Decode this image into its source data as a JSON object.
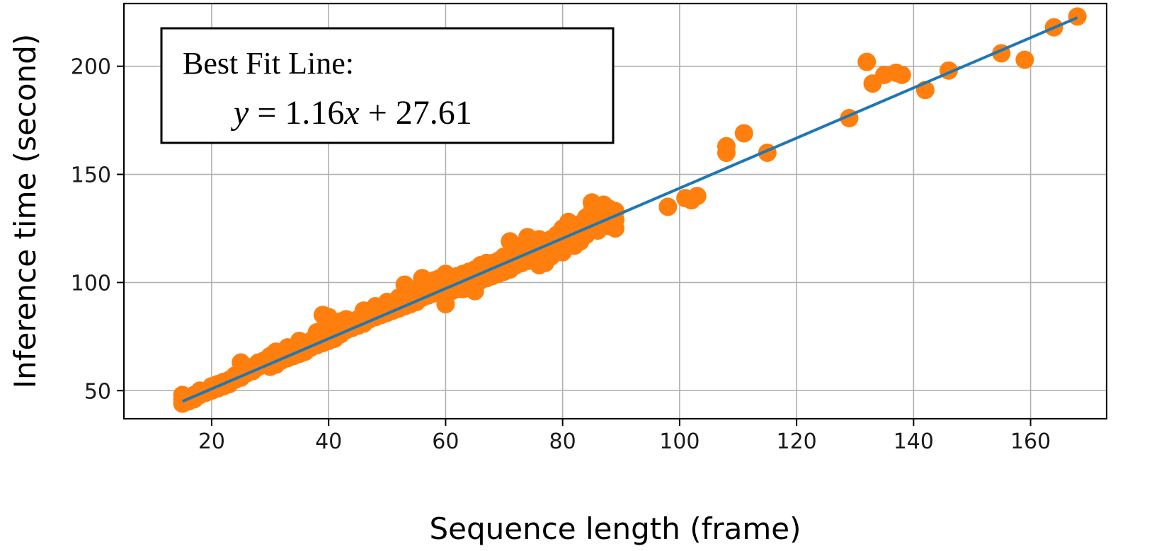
{
  "chart_data": {
    "type": "scatter",
    "xlabel": "Sequence length (frame)",
    "ylabel": "Inference time (second)",
    "xlim": [
      5,
      173
    ],
    "ylim": [
      37,
      229
    ],
    "xticks": [
      20,
      40,
      60,
      80,
      100,
      120,
      140,
      160
    ],
    "yticks": [
      50,
      100,
      150,
      200
    ],
    "grid": true,
    "colors": {
      "points": "#ff7f0e",
      "fit_line": "#1f77b4",
      "grid": "#b0b0b0"
    },
    "annotation": {
      "title": "Best Fit Line:",
      "eq_y": "y",
      "eq_mid": " = 1.16",
      "eq_x": "x",
      "eq_tail": " + 27.61"
    },
    "fit_line": {
      "slope": 1.16,
      "intercept": 27.61,
      "x_range": [
        15,
        168
      ]
    },
    "series": [
      {
        "points": [
          [
            15,
            44
          ],
          [
            15,
            46
          ],
          [
            15,
            48
          ],
          [
            16,
            45
          ],
          [
            16,
            47
          ],
          [
            17,
            46
          ],
          [
            17,
            48
          ],
          [
            18,
            48
          ],
          [
            18,
            50
          ],
          [
            19,
            49
          ],
          [
            20,
            50
          ],
          [
            20,
            52
          ],
          [
            21,
            51
          ],
          [
            21,
            53
          ],
          [
            22,
            52
          ],
          [
            22,
            54
          ],
          [
            23,
            53
          ],
          [
            23,
            55
          ],
          [
            24,
            55
          ],
          [
            24,
            57
          ],
          [
            25,
            56
          ],
          [
            25,
            58
          ],
          [
            25,
            63
          ],
          [
            26,
            58
          ],
          [
            26,
            60
          ],
          [
            27,
            59
          ],
          [
            27,
            61
          ],
          [
            28,
            61
          ],
          [
            28,
            63
          ],
          [
            29,
            62
          ],
          [
            29,
            64
          ],
          [
            30,
            61
          ],
          [
            30,
            63
          ],
          [
            30,
            66
          ],
          [
            31,
            62
          ],
          [
            31,
            65
          ],
          [
            31,
            68
          ],
          [
            32,
            64
          ],
          [
            32,
            67
          ],
          [
            33,
            65
          ],
          [
            33,
            68
          ],
          [
            33,
            70
          ],
          [
            34,
            66
          ],
          [
            34,
            69
          ],
          [
            35,
            67
          ],
          [
            35,
            70
          ],
          [
            35,
            73
          ],
          [
            36,
            68
          ],
          [
            36,
            71
          ],
          [
            37,
            70
          ],
          [
            37,
            73
          ],
          [
            38,
            71
          ],
          [
            38,
            74
          ],
          [
            38,
            77
          ],
          [
            39,
            72
          ],
          [
            39,
            75
          ],
          [
            39,
            78
          ],
          [
            39,
            85
          ],
          [
            40,
            73
          ],
          [
            40,
            76
          ],
          [
            40,
            79
          ],
          [
            40,
            84
          ],
          [
            41,
            74
          ],
          [
            41,
            77
          ],
          [
            41,
            80
          ],
          [
            42,
            76
          ],
          [
            42,
            79
          ],
          [
            42,
            82
          ],
          [
            43,
            78
          ],
          [
            43,
            80
          ],
          [
            43,
            83
          ],
          [
            44,
            79
          ],
          [
            44,
            82
          ],
          [
            45,
            80
          ],
          [
            45,
            83
          ],
          [
            46,
            81
          ],
          [
            46,
            84
          ],
          [
            46,
            87
          ],
          [
            47,
            83
          ],
          [
            47,
            86
          ],
          [
            48,
            84
          ],
          [
            48,
            87
          ],
          [
            48,
            89
          ],
          [
            49,
            85
          ],
          [
            49,
            88
          ],
          [
            50,
            86
          ],
          [
            50,
            89
          ],
          [
            50,
            91
          ],
          [
            51,
            87
          ],
          [
            51,
            90
          ],
          [
            52,
            88
          ],
          [
            52,
            91
          ],
          [
            52,
            93
          ],
          [
            53,
            89
          ],
          [
            53,
            92
          ],
          [
            53,
            95
          ],
          [
            53,
            99
          ],
          [
            54,
            90
          ],
          [
            54,
            93
          ],
          [
            54,
            96
          ],
          [
            55,
            91
          ],
          [
            55,
            94
          ],
          [
            55,
            97
          ],
          [
            56,
            93
          ],
          [
            56,
            96
          ],
          [
            56,
            99
          ],
          [
            56,
            102
          ],
          [
            57,
            94
          ],
          [
            57,
            97
          ],
          [
            57,
            100
          ],
          [
            58,
            95
          ],
          [
            58,
            98
          ],
          [
            58,
            101
          ],
          [
            59,
            96
          ],
          [
            59,
            99
          ],
          [
            59,
            102
          ],
          [
            60,
            90
          ],
          [
            60,
            94
          ],
          [
            60,
            97
          ],
          [
            60,
            100
          ],
          [
            60,
            104
          ],
          [
            61,
            96
          ],
          [
            61,
            99
          ],
          [
            61,
            102
          ],
          [
            62,
            97
          ],
          [
            62,
            100
          ],
          [
            62,
            103
          ],
          [
            63,
            97
          ],
          [
            63,
            101
          ],
          [
            63,
            104
          ],
          [
            64,
            99
          ],
          [
            64,
            102
          ],
          [
            64,
            105
          ],
          [
            65,
            96
          ],
          [
            65,
            100
          ],
          [
            65,
            103
          ],
          [
            65,
            106
          ],
          [
            66,
            101
          ],
          [
            66,
            104
          ],
          [
            66,
            108
          ],
          [
            67,
            102
          ],
          [
            67,
            105
          ],
          [
            67,
            109
          ],
          [
            68,
            103
          ],
          [
            68,
            106
          ],
          [
            68,
            109
          ],
          [
            69,
            104
          ],
          [
            69,
            107
          ],
          [
            69,
            110
          ],
          [
            70,
            105
          ],
          [
            70,
            109
          ],
          [
            70,
            112
          ],
          [
            71,
            106
          ],
          [
            71,
            110
          ],
          [
            71,
            113
          ],
          [
            71,
            119
          ],
          [
            72,
            108
          ],
          [
            72,
            111
          ],
          [
            72,
            115
          ],
          [
            73,
            109
          ],
          [
            73,
            112
          ],
          [
            73,
            116
          ],
          [
            74,
            110
          ],
          [
            74,
            114
          ],
          [
            74,
            117
          ],
          [
            74,
            121
          ],
          [
            75,
            110
          ],
          [
            75,
            114
          ],
          [
            75,
            118
          ],
          [
            76,
            108
          ],
          [
            76,
            112
          ],
          [
            76,
            116
          ],
          [
            76,
            120
          ],
          [
            77,
            109
          ],
          [
            77,
            114
          ],
          [
            77,
            118
          ],
          [
            78,
            112
          ],
          [
            78,
            116
          ],
          [
            78,
            120
          ],
          [
            79,
            114
          ],
          [
            79,
            118
          ],
          [
            79,
            122
          ],
          [
            80,
            114
          ],
          [
            80,
            117
          ],
          [
            80,
            121
          ],
          [
            80,
            125
          ],
          [
            81,
            118
          ],
          [
            81,
            122
          ],
          [
            81,
            128
          ],
          [
            82,
            117
          ],
          [
            82,
            121
          ],
          [
            82,
            125
          ],
          [
            83,
            119
          ],
          [
            83,
            123
          ],
          [
            83,
            127
          ],
          [
            84,
            122
          ],
          [
            84,
            126
          ],
          [
            84,
            130
          ],
          [
            85,
            126
          ],
          [
            85,
            130
          ],
          [
            85,
            133
          ],
          [
            85,
            137
          ],
          [
            86,
            124
          ],
          [
            86,
            128
          ],
          [
            86,
            132
          ],
          [
            87,
            126
          ],
          [
            87,
            130
          ],
          [
            87,
            136
          ],
          [
            88,
            126
          ],
          [
            88,
            130
          ],
          [
            88,
            134
          ],
          [
            89,
            125
          ],
          [
            89,
            129
          ],
          [
            89,
            133
          ],
          [
            98,
            135
          ],
          [
            101,
            139
          ],
          [
            102,
            138
          ],
          [
            103,
            140
          ],
          [
            108,
            160
          ],
          [
            108,
            163
          ],
          [
            111,
            169
          ],
          [
            115,
            160
          ],
          [
            129,
            176
          ],
          [
            132,
            202
          ],
          [
            133,
            192
          ],
          [
            135,
            196
          ],
          [
            137,
            197
          ],
          [
            138,
            196
          ],
          [
            142,
            189
          ],
          [
            146,
            198
          ],
          [
            155,
            206
          ],
          [
            159,
            203
          ],
          [
            164,
            218
          ],
          [
            168,
            223
          ]
        ]
      }
    ]
  }
}
